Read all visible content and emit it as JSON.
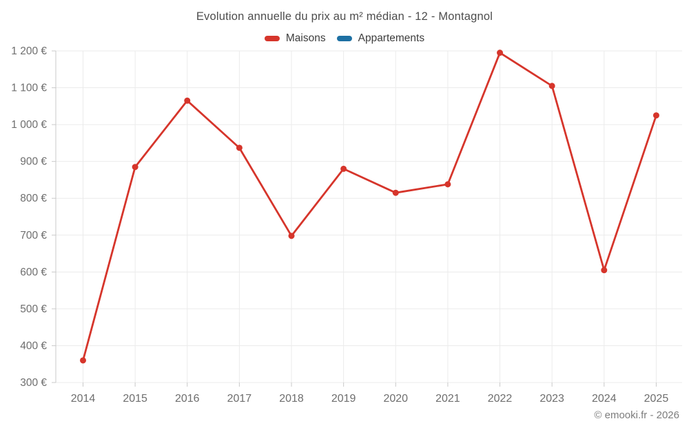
{
  "title": "Evolution annuelle du prix au m² médian - 12 - Montagnol",
  "footer": {
    "credit": "© emooki.fr - 2026"
  },
  "colors": {
    "maisons": "#d6352b",
    "appartements": "#1d70a3",
    "gridline": "#ebebeb",
    "axis": "#c9c9c9",
    "tick_label": "#6e6e6e",
    "title_text": "#4d4d4d"
  },
  "chart_data": {
    "type": "line",
    "title": "Evolution annuelle du prix au m² médian - 12 - Montagnol",
    "categories": [
      "2014",
      "2015",
      "2016",
      "2017",
      "2018",
      "2019",
      "2020",
      "2021",
      "2022",
      "2023",
      "2024",
      "2025"
    ],
    "series": [
      {
        "name": "Maisons",
        "color": "#d6352b",
        "values": [
          360,
          885,
          1065,
          937,
          698,
          880,
          815,
          838,
          1195,
          1105,
          605,
          1025
        ]
      },
      {
        "name": "Appartements",
        "color": "#1d70a3",
        "values": []
      }
    ],
    "xlabel": "",
    "ylabel": "",
    "ylim": [
      300,
      1200
    ],
    "ytick_step": 100,
    "ytick_labels_top_to_bottom": [
      "1 200 €",
      "1 100 €",
      "1 000 €",
      "900 €",
      "800 €",
      "700 €",
      "600 €",
      "500 €",
      "400 €",
      "300 €"
    ],
    "grid": true,
    "legend_position": "top",
    "marker": "circle"
  }
}
